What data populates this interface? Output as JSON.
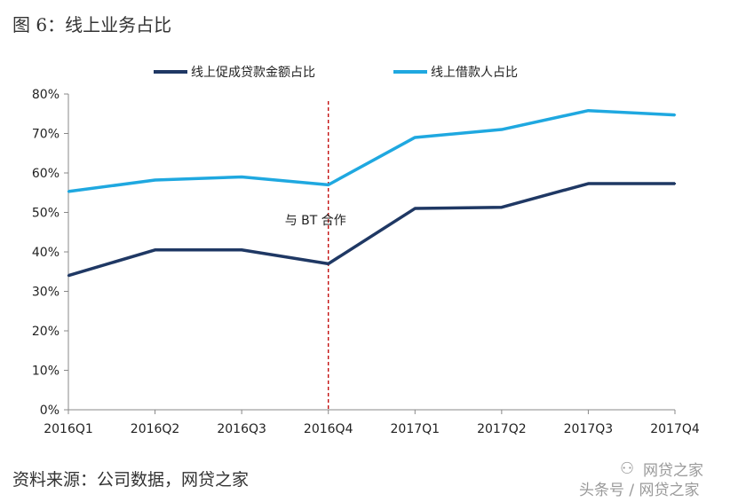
{
  "figure_title": "图 6：线上业务占比",
  "source": "资料来源：公司数据，网贷之家",
  "watermark": {
    "line1": "网贷之家",
    "line2": "头条号 / 网贷之家",
    "icon": "wechat-icon"
  },
  "chart_data": {
    "type": "line",
    "categories": [
      "2016Q1",
      "2016Q2",
      "2016Q3",
      "2016Q4",
      "2017Q1",
      "2017Q2",
      "2017Q3",
      "2017Q4"
    ],
    "series": [
      {
        "name": "线上促成贷款金额占比",
        "color": "#1f3864",
        "values": [
          34,
          40.5,
          40.5,
          37,
          51,
          51.3,
          57.3,
          57.3
        ]
      },
      {
        "name": "线上借款人占比",
        "color": "#1fa8e0",
        "values": [
          55.3,
          58.2,
          59,
          57,
          69,
          71,
          75.8,
          74.7
        ]
      }
    ],
    "y_ticks": [
      "0%",
      "10%",
      "20%",
      "30%",
      "40%",
      "50%",
      "60%",
      "70%",
      "80%"
    ],
    "ylim": [
      0,
      80
    ],
    "grid": false,
    "legend_position": "top",
    "annotation": {
      "text": "与 BT 合作",
      "at_category": "2016Q4",
      "line_color": "#c00000"
    }
  }
}
